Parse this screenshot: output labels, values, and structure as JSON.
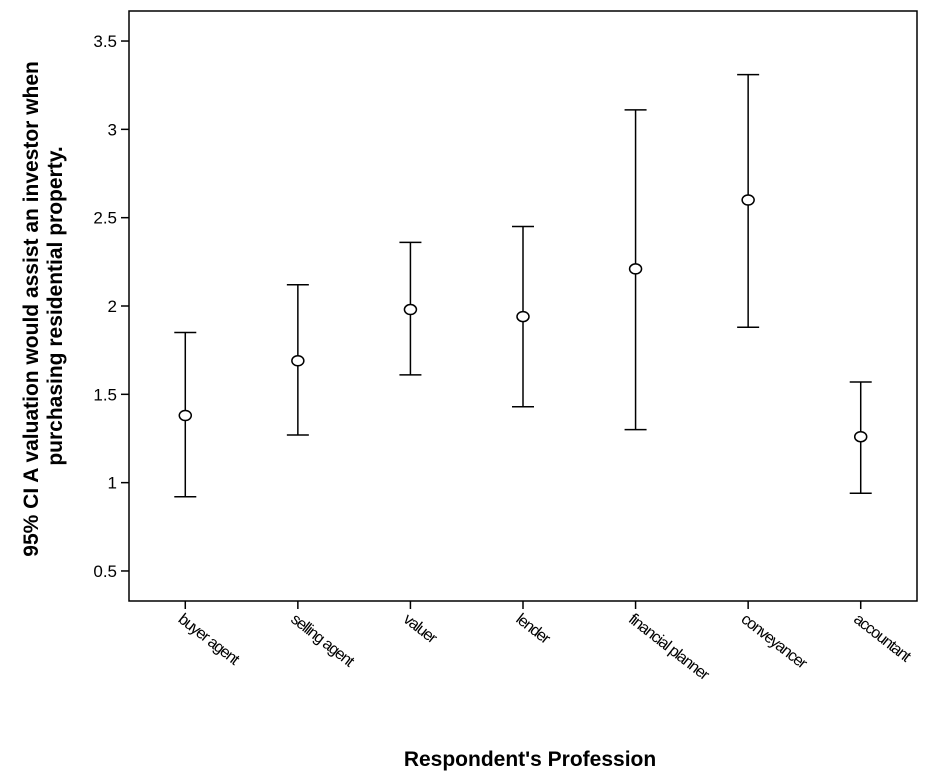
{
  "chart_data": {
    "type": "errorbar",
    "xlabel": "Respondent's Profession",
    "ylabel_lines": [
      "95% CI A valuation would assist an investor when",
      "purchasing residential property."
    ],
    "ylim": [
      0.33,
      3.67
    ],
    "yticks": [
      "0.5",
      "1",
      "1.5",
      "2",
      "2.5",
      "3",
      "3.5"
    ],
    "ytick_values": [
      0.5,
      1,
      1.5,
      2,
      2.5,
      3,
      3.5
    ],
    "grid": false,
    "categories": [
      "buyer agent",
      "selling agent",
      "valuer",
      "lender",
      "financial planner",
      "conveyancer",
      "accountant"
    ],
    "series": [
      {
        "mean": [
          1.38,
          1.69,
          1.98,
          1.94,
          2.21,
          2.6,
          1.26
        ],
        "lower": [
          0.92,
          1.27,
          1.61,
          1.43,
          1.3,
          1.88,
          0.94
        ],
        "upper": [
          1.85,
          2.12,
          2.36,
          2.45,
          3.11,
          3.31,
          1.57
        ]
      }
    ]
  }
}
